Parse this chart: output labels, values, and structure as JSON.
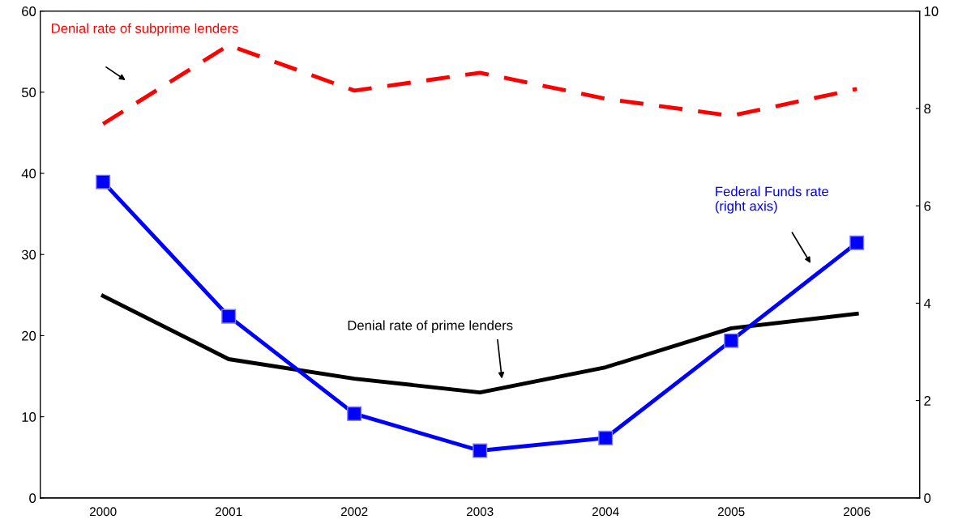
{
  "chart_data": {
    "type": "line",
    "categories": [
      "2000",
      "2001",
      "2002",
      "2003",
      "2004",
      "2005",
      "2006"
    ],
    "series": [
      {
        "name": "Denial rate of subprime lenders",
        "color": "#ff0000",
        "line_style": "dashed",
        "marker": "none",
        "values": [
          46.1,
          55.8,
          50.2,
          52.4,
          49.2,
          47.1,
          50.4
        ]
      },
      {
        "name": "Denial rate of prime lenders",
        "color": "#000000",
        "line_style": "solid",
        "marker": "none",
        "values": [
          24.9,
          17.1,
          14.7,
          13.0,
          16.1,
          20.9,
          22.7
        ]
      },
      {
        "name": "Federal Funds rate\n(right axis)",
        "color": "#0000ff",
        "line_style": "solid",
        "marker": "square",
        "axis": "y2",
        "values": [
          6.49,
          3.73,
          1.73,
          0.97,
          1.23,
          3.23,
          5.24
        ]
      }
    ],
    "ylim": [
      0,
      60
    ],
    "yticks": [
      0,
      10,
      20,
      30,
      40,
      50,
      60
    ],
    "y2lim": [
      0,
      10
    ],
    "y2ticks": [
      0,
      2,
      4,
      6,
      8,
      10
    ],
    "grid": false,
    "legend": false
  }
}
